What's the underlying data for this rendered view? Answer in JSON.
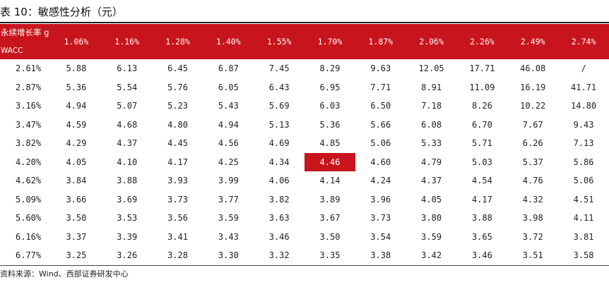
{
  "title": "表 10：敏感性分析（元）",
  "corner": {
    "g_label": "永续增长率 g",
    "wacc_label": "WACC"
  },
  "g_values": [
    "1.06%",
    "1.16%",
    "1.28%",
    "1.40%",
    "1.55%",
    "1.70%",
    "1.87%",
    "2.06%",
    "2.26%",
    "2.49%",
    "2.74%"
  ],
  "rows": [
    {
      "wacc": "2.61%",
      "values": [
        "5.88",
        "6.13",
        "6.45",
        "6.87",
        "7.45",
        "8.29",
        "9.63",
        "12.05",
        "17.71",
        "46.08",
        "/"
      ]
    },
    {
      "wacc": "2.87%",
      "values": [
        "5.36",
        "5.54",
        "5.76",
        "6.05",
        "6.43",
        "6.95",
        "7.71",
        "8.91",
        "11.09",
        "16.19",
        "41.71"
      ]
    },
    {
      "wacc": "3.16%",
      "values": [
        "4.94",
        "5.07",
        "5.23",
        "5.43",
        "5.69",
        "6.03",
        "6.50",
        "7.18",
        "8.26",
        "10.22",
        "14.80"
      ]
    },
    {
      "wacc": "3.47%",
      "values": [
        "4.59",
        "4.68",
        "4.80",
        "4.94",
        "5.13",
        "5.36",
        "5.66",
        "6.08",
        "6.70",
        "7.67",
        "9.43"
      ]
    },
    {
      "wacc": "3.82%",
      "values": [
        "4.29",
        "4.37",
        "4.45",
        "4.56",
        "4.69",
        "4.85",
        "5.06",
        "5.33",
        "5.71",
        "6.26",
        "7.13"
      ]
    },
    {
      "wacc": "4.20%",
      "values": [
        "4.05",
        "4.10",
        "4.17",
        "4.25",
        "4.34",
        "4.46",
        "4.60",
        "4.79",
        "5.03",
        "5.37",
        "5.86"
      ]
    },
    {
      "wacc": "4.62%",
      "values": [
        "3.84",
        "3.88",
        "3.93",
        "3.99",
        "4.06",
        "4.14",
        "4.24",
        "4.37",
        "4.54",
        "4.76",
        "5.06"
      ]
    },
    {
      "wacc": "5.09%",
      "values": [
        "3.66",
        "3.69",
        "3.73",
        "3.77",
        "3.82",
        "3.89",
        "3.96",
        "4.05",
        "4.17",
        "4.32",
        "4.51"
      ]
    },
    {
      "wacc": "5.60%",
      "values": [
        "3.50",
        "3.53",
        "3.56",
        "3.59",
        "3.63",
        "3.67",
        "3.73",
        "3.80",
        "3.88",
        "3.98",
        "4.11"
      ]
    },
    {
      "wacc": "6.16%",
      "values": [
        "3.37",
        "3.39",
        "3.41",
        "3.43",
        "3.46",
        "3.50",
        "3.54",
        "3.59",
        "3.65",
        "3.72",
        "3.81"
      ]
    },
    {
      "wacc": "6.77%",
      "values": [
        "3.25",
        "3.26",
        "3.28",
        "3.30",
        "3.32",
        "3.35",
        "3.38",
        "3.42",
        "3.46",
        "3.51",
        "3.58"
      ]
    }
  ],
  "highlight": {
    "row": 5,
    "col": 5
  },
  "colors": {
    "header_bg": "#c8151d",
    "highlight_bg": "#c8151d",
    "header_text": "#ffffff"
  },
  "source": "资料来源：Wind、西部证券研发中心"
}
